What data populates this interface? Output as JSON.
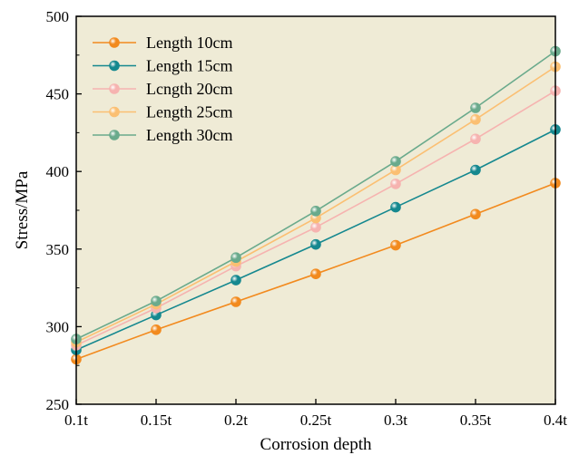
{
  "chart_data": {
    "type": "line",
    "title": "",
    "xlabel": "Corrosion depth",
    "ylabel": "Stress/MPa",
    "categories": [
      "0.1t",
      "0.15t",
      "0.2t",
      "0.25t",
      "0.3t",
      "0.35t",
      "0.4t"
    ],
    "ylim": [
      250,
      500
    ],
    "yticks": [
      250,
      300,
      350,
      400,
      450,
      500
    ],
    "grid": false,
    "legend_position": "top-left",
    "plot_background": "#efebd6",
    "series": [
      {
        "name": "Length 10cm",
        "color": "#f28a1e",
        "values": [
          279,
          298,
          316,
          334,
          352.5,
          372.5,
          392.5
        ]
      },
      {
        "name": "Length 15cm",
        "color": "#15888f",
        "values": [
          285,
          307.5,
          330,
          353,
          377,
          401,
          427
        ]
      },
      {
        "name": "Lcngth 20cm",
        "color": "#f6b3b0",
        "values": [
          288,
          312,
          339,
          364,
          392,
          421,
          452
        ]
      },
      {
        "name": "Length 25cm",
        "color": "#fbbf72",
        "values": [
          290,
          314.5,
          342,
          370,
          401,
          433.5,
          467.5
        ]
      },
      {
        "name": "Length 30cm",
        "color": "#6aaa8c",
        "values": [
          292,
          316.5,
          344.5,
          374.5,
          406.5,
          441,
          477.5
        ]
      }
    ]
  }
}
